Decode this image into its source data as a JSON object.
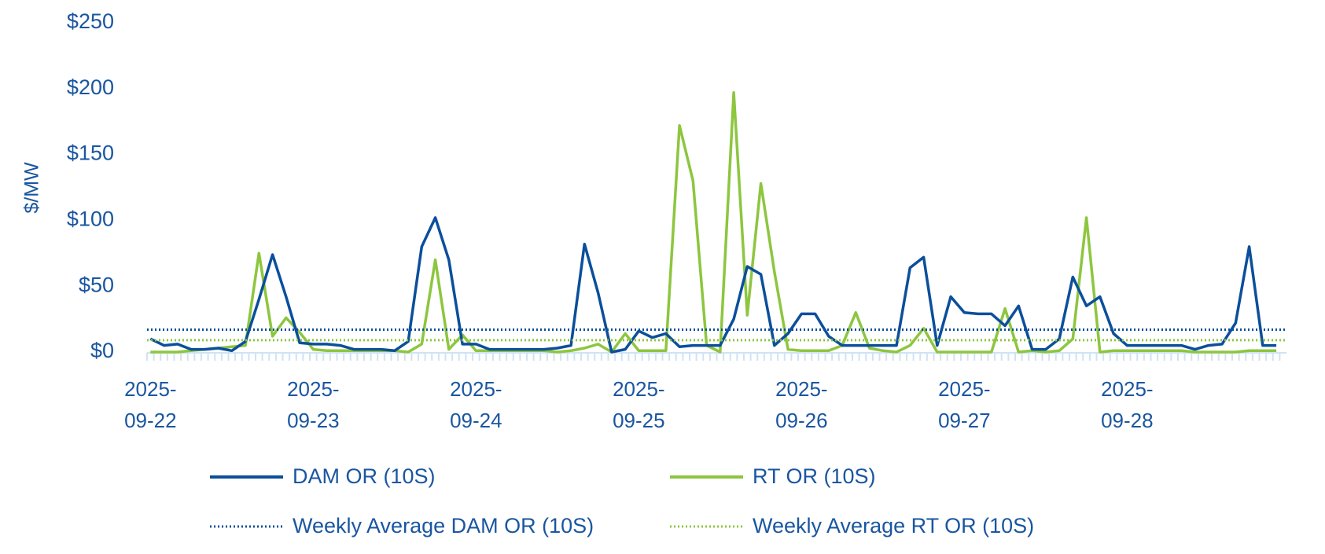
{
  "chart_data": {
    "type": "line",
    "y_label": "$/MW",
    "categories": [
      "2025-09-22",
      null,
      null,
      null,
      null,
      null,
      null,
      null,
      null,
      null,
      null,
      null,
      "2025-09-23",
      null,
      null,
      null,
      null,
      null,
      null,
      null,
      null,
      null,
      null,
      null,
      "2025-09-24",
      null,
      null,
      null,
      null,
      null,
      null,
      null,
      null,
      null,
      null,
      null,
      "2025-09-25",
      null,
      null,
      null,
      null,
      null,
      null,
      null,
      null,
      null,
      null,
      null,
      "2025-09-26",
      null,
      null,
      null,
      null,
      null,
      null,
      null,
      null,
      null,
      null,
      null,
      "2025-09-27",
      null,
      null,
      null,
      null,
      null,
      null,
      null,
      null,
      null,
      null,
      null,
      "2025-09-28",
      null,
      null,
      null,
      null,
      null,
      null,
      null,
      null,
      null,
      null,
      null
    ],
    "series": [
      {
        "name": "DAM OR (10S)",
        "color": "#0b4f9c",
        "values": [
          10,
          5,
          6,
          2,
          2,
          3,
          1,
          8,
          40,
          74,
          42,
          7,
          6,
          6,
          5,
          2,
          2,
          2,
          1,
          8,
          80,
          102,
          70,
          6,
          6,
          2,
          2,
          2,
          2,
          2,
          3,
          5,
          82,
          45,
          0,
          2,
          16,
          11,
          14,
          4,
          5,
          5,
          5,
          25,
          65,
          59,
          5,
          14,
          29,
          29,
          12,
          5,
          5,
          5,
          5,
          5,
          64,
          72,
          5,
          42,
          30,
          29,
          29,
          20,
          35,
          2,
          2,
          10,
          57,
          35,
          42,
          14,
          5,
          5,
          5,
          5,
          5,
          2,
          5,
          6,
          22,
          80,
          5,
          5
        ]
      },
      {
        "name": "RT OR (10S)",
        "color": "#8dc63f",
        "values": [
          0,
          0,
          0,
          1,
          2,
          3,
          4,
          5,
          75,
          12,
          26,
          15,
          2,
          1,
          1,
          1,
          1,
          1,
          1,
          0,
          6,
          70,
          2,
          13,
          1,
          1,
          1,
          1,
          1,
          1,
          0,
          1,
          3,
          6,
          0,
          14,
          1,
          1,
          1,
          172,
          130,
          5,
          0,
          197,
          28,
          128,
          61,
          2,
          1,
          1,
          1,
          5,
          30,
          3,
          1,
          0,
          5,
          18,
          0,
          0,
          0,
          0,
          0,
          33,
          0,
          1,
          0,
          1,
          10,
          102,
          0,
          1,
          1,
          1,
          1,
          1,
          1,
          0,
          0,
          0,
          0,
          1,
          1,
          1
        ]
      },
      {
        "name": "Weekly Average DAM OR (10S)",
        "color": "#0b4f9c",
        "style": "dotted",
        "value": 17
      },
      {
        "name": "Weekly Average RT OR (10S)",
        "color": "#8dc63f",
        "style": "dotted",
        "value": 9
      }
    ],
    "ylim": [
      0,
      250
    ],
    "yticks": [
      {
        "value": 0,
        "label": "$0"
      },
      {
        "value": 50,
        "label": "$50"
      },
      {
        "value": 100,
        "label": "$100"
      },
      {
        "value": 150,
        "label": "$150"
      },
      {
        "value": 200,
        "label": "$200"
      },
      {
        "value": 250,
        "label": "$250"
      }
    ],
    "grid": false
  }
}
